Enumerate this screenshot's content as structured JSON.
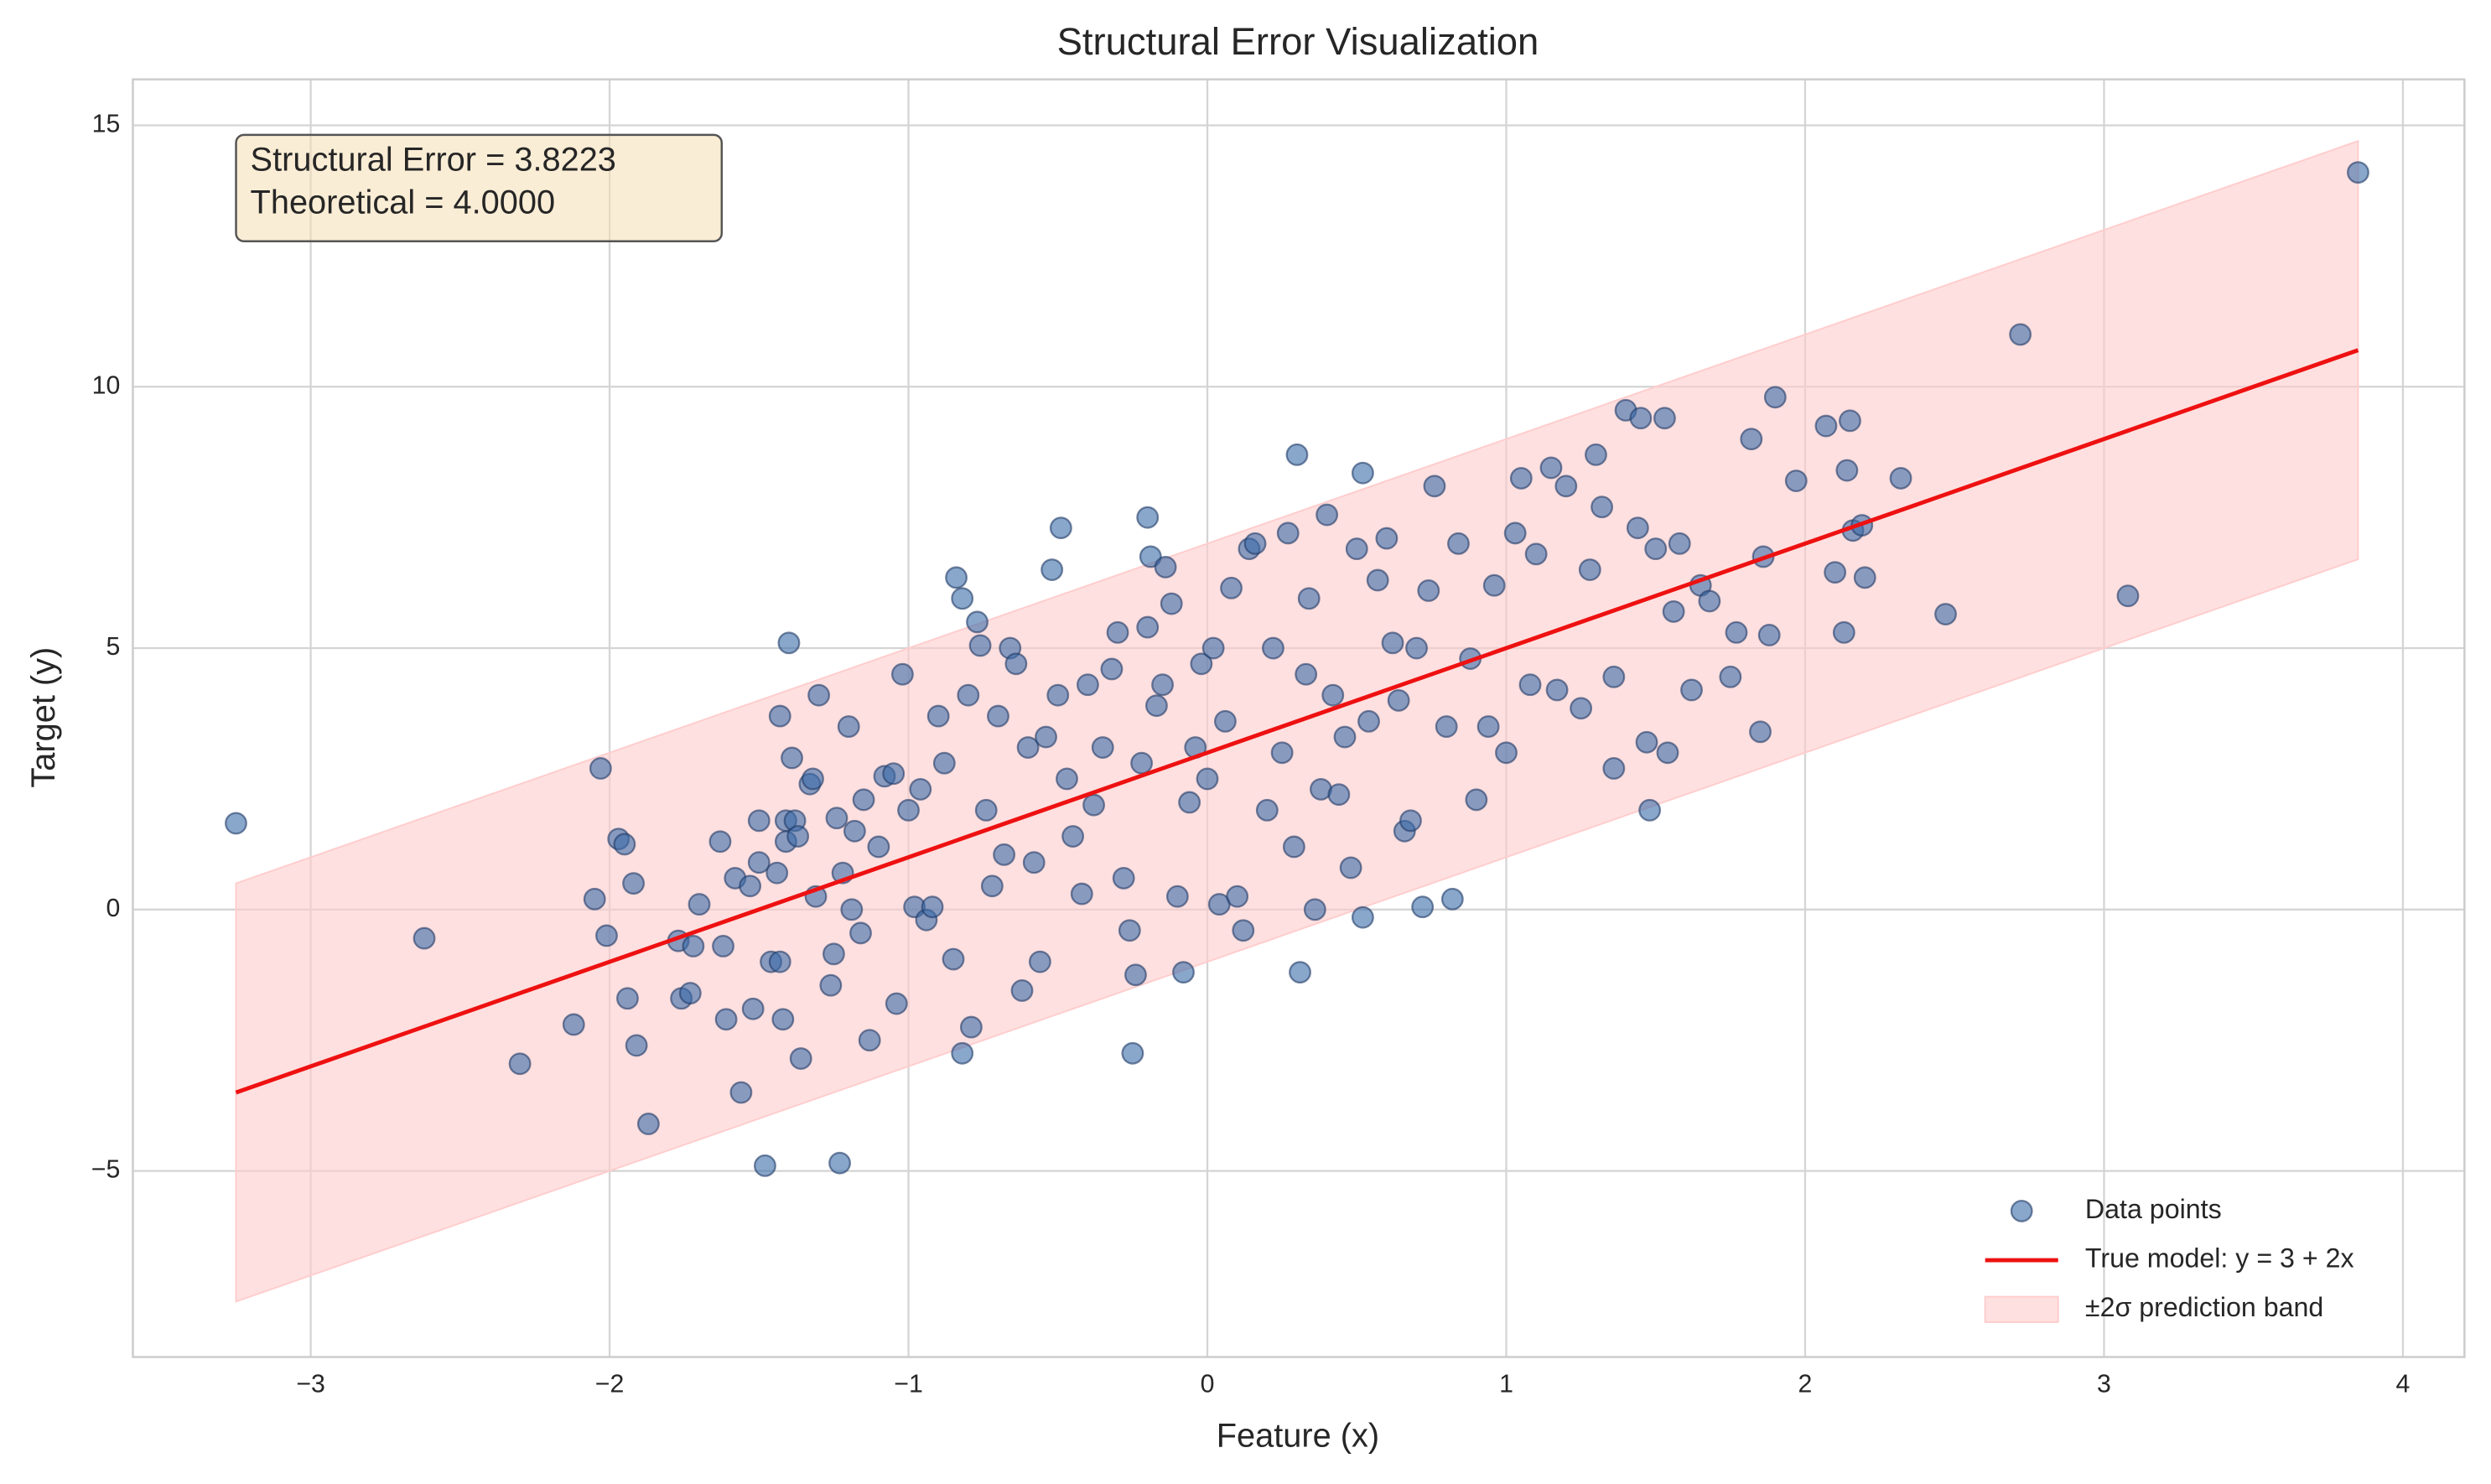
{
  "chart_data": {
    "type": "scatter",
    "title": "Structural Error Visualization",
    "xlabel": "Feature (x)",
    "ylabel": "Target (y)",
    "xlim": [
      -3.595,
      4.206
    ],
    "ylim": [
      -8.56,
      15.88
    ],
    "xticks": [
      {
        "value": -3,
        "label": "−3"
      },
      {
        "value": -2,
        "label": "−2"
      },
      {
        "value": -1,
        "label": "−1"
      },
      0,
      1,
      2,
      3,
      4
    ],
    "yticks": [
      {
        "value": -5,
        "label": "−5"
      },
      0,
      5,
      10,
      15
    ],
    "grid": true,
    "legend_loc": "lower right",
    "annotation": [
      "Structural Error = 3.8223",
      "Theoretical = 4.0000"
    ],
    "series": [
      {
        "name": "Data points",
        "type": "scatter",
        "color": "#3a6aa8",
        "edgecolor": "#1f3b66",
        "x": [
          -3.25,
          -2.62,
          -2.3,
          -2.12,
          -2.05,
          -2.03,
          -2.01,
          -1.97,
          -1.95,
          -1.94,
          -1.92,
          -1.91,
          -1.87,
          -1.77,
          -1.76,
          -1.73,
          -1.72,
          -1.7,
          -1.63,
          -1.62,
          -1.61,
          -1.58,
          -1.56,
          -1.53,
          -1.52,
          -1.5,
          -1.5,
          -1.48,
          -1.46,
          -1.44,
          -1.43,
          -1.43,
          -1.42,
          -1.41,
          -1.41,
          -1.4,
          -1.39,
          -1.38,
          -1.37,
          -1.36,
          -1.33,
          -1.32,
          -1.31,
          -1.3,
          -1.26,
          -1.25,
          -1.24,
          -1.23,
          -1.22,
          -1.2,
          -1.19,
          -1.18,
          -1.16,
          -1.15,
          -1.13,
          -1.1,
          -1.08,
          -1.05,
          -1.04,
          -1.02,
          -1.0,
          -0.98,
          -0.96,
          -0.94,
          -0.92,
          -0.9,
          -0.88,
          -0.85,
          -0.84,
          -0.82,
          -0.82,
          -0.8,
          -0.79,
          -0.77,
          -0.76,
          -0.74,
          -0.72,
          -0.7,
          -0.68,
          -0.66,
          -0.64,
          -0.62,
          -0.6,
          -0.58,
          -0.56,
          -0.54,
          -0.52,
          -0.5,
          -0.49,
          -0.47,
          -0.45,
          -0.42,
          -0.4,
          -0.38,
          -0.35,
          -0.32,
          -0.3,
          -0.28,
          -0.26,
          -0.25,
          -0.24,
          -0.22,
          -0.2,
          -0.2,
          -0.19,
          -0.17,
          -0.15,
          -0.14,
          -0.12,
          -0.1,
          -0.08,
          -0.06,
          -0.04,
          -0.02,
          0.0,
          0.02,
          0.04,
          0.06,
          0.08,
          0.1,
          0.12,
          0.14,
          0.16,
          0.2,
          0.22,
          0.25,
          0.27,
          0.29,
          0.3,
          0.31,
          0.33,
          0.34,
          0.36,
          0.38,
          0.4,
          0.42,
          0.44,
          0.46,
          0.48,
          0.5,
          0.52,
          0.52,
          0.54,
          0.57,
          0.6,
          0.62,
          0.64,
          0.66,
          0.68,
          0.7,
          0.72,
          0.74,
          0.76,
          0.8,
          0.82,
          0.84,
          0.88,
          0.9,
          0.94,
          0.96,
          1.0,
          1.03,
          1.05,
          1.08,
          1.1,
          1.15,
          1.17,
          1.2,
          1.25,
          1.28,
          1.3,
          1.32,
          1.36,
          1.36,
          1.4,
          1.44,
          1.45,
          1.47,
          1.48,
          1.5,
          1.53,
          1.54,
          1.56,
          1.58,
          1.62,
          1.65,
          1.68,
          1.75,
          1.77,
          1.82,
          1.85,
          1.86,
          1.88,
          1.9,
          1.97,
          2.07,
          2.1,
          2.13,
          2.14,
          2.15,
          2.16,
          2.19,
          2.2,
          2.32,
          2.47,
          2.72,
          3.08,
          3.85
        ],
        "y": [
          1.65,
          -0.55,
          -2.95,
          -2.2,
          0.2,
          2.7,
          -0.5,
          1.35,
          1.25,
          -1.7,
          0.5,
          -2.6,
          -4.1,
          -0.6,
          -1.7,
          -1.6,
          -0.7,
          0.1,
          1.3,
          -0.7,
          -2.1,
          0.6,
          -3.5,
          0.45,
          -1.9,
          1.7,
          0.9,
          -4.9,
          -1.0,
          0.7,
          -1.0,
          3.7,
          -2.1,
          1.3,
          1.7,
          5.1,
          2.9,
          1.7,
          1.4,
          -2.85,
          2.4,
          2.5,
          0.25,
          4.1,
          -1.45,
          -0.85,
          1.75,
          -4.85,
          0.7,
          3.5,
          0.0,
          1.5,
          -0.45,
          2.1,
          -2.5,
          1.2,
          2.55,
          2.6,
          -1.8,
          4.5,
          1.9,
          0.05,
          2.3,
          -0.2,
          0.05,
          3.7,
          2.8,
          -0.95,
          6.35,
          5.95,
          -2.75,
          4.1,
          -2.25,
          5.5,
          5.05,
          1.9,
          0.45,
          3.7,
          1.05,
          5.0,
          4.7,
          -1.55,
          3.1,
          0.9,
          -1.0,
          3.3,
          6.5,
          4.1,
          7.3,
          2.5,
          1.4,
          0.3,
          4.3,
          2.0,
          3.1,
          4.6,
          5.3,
          0.6,
          -0.4,
          -2.75,
          -1.25,
          2.8,
          5.4,
          7.5,
          6.75,
          3.9,
          4.3,
          6.55,
          5.85,
          0.25,
          -1.2,
          2.05,
          3.1,
          4.7,
          2.5,
          5.0,
          0.1,
          3.6,
          6.15,
          0.25,
          -0.4,
          6.9,
          7.0,
          1.9,
          5.0,
          3.0,
          7.2,
          1.2,
          8.7,
          -1.2,
          4.5,
          5.95,
          0.0,
          2.3,
          7.55,
          4.1,
          2.2,
          3.3,
          0.8,
          6.9,
          8.35,
          -0.15,
          3.6,
          6.3,
          7.1,
          5.1,
          4.0,
          1.5,
          1.7,
          5.0,
          0.05,
          6.1,
          8.1,
          3.5,
          0.2,
          7.0,
          4.8,
          2.1,
          3.5,
          6.2,
          3.0,
          7.2,
          8.25,
          4.3,
          6.8,
          8.45,
          4.2,
          8.1,
          3.85,
          6.5,
          8.7,
          7.7,
          2.7,
          4.45,
          9.55,
          7.3,
          9.4,
          3.2,
          1.9,
          6.9,
          9.4,
          3.0,
          5.7,
          7.0,
          4.2,
          6.2,
          5.9,
          4.45,
          5.3,
          9.0,
          3.4,
          6.75,
          5.25,
          9.8,
          8.2,
          9.25,
          6.45,
          5.3,
          8.4,
          9.35,
          7.25,
          7.35,
          6.35,
          8.25,
          5.65,
          11.0,
          6.0,
          14.1
        ]
      },
      {
        "name": "True model: y = 3 + 2x",
        "type": "line",
        "color": "#ee1111",
        "x": [
          -3.25,
          3.85
        ],
        "y": [
          -3.5,
          10.7
        ]
      },
      {
        "name": "±2σ prediction band",
        "type": "band",
        "color": "#ffcccc",
        "x": [
          -3.25,
          3.85
        ],
        "lower": [
          -7.5,
          6.7
        ],
        "upper": [
          0.5,
          14.7
        ]
      }
    ]
  }
}
